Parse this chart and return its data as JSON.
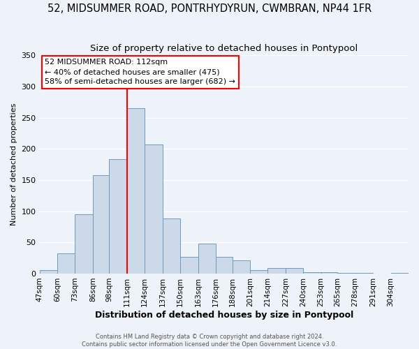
{
  "title": "52, MIDSUMMER ROAD, PONTRHYDYRUN, CWMBRAN, NP44 1FR",
  "subtitle": "Size of property relative to detached houses in Pontypool",
  "xlabel": "Distribution of detached houses by size in Pontypool",
  "ylabel": "Number of detached properties",
  "bin_labels": [
    "47sqm",
    "60sqm",
    "73sqm",
    "86sqm",
    "98sqm",
    "111sqm",
    "124sqm",
    "137sqm",
    "150sqm",
    "163sqm",
    "176sqm",
    "188sqm",
    "201sqm",
    "214sqm",
    "227sqm",
    "240sqm",
    "253sqm",
    "265sqm",
    "278sqm",
    "291sqm",
    "304sqm"
  ],
  "bin_edges": [
    47,
    60,
    73,
    86,
    98,
    111,
    124,
    137,
    150,
    163,
    176,
    188,
    201,
    214,
    227,
    240,
    253,
    265,
    278,
    291,
    304
  ],
  "bar_heights": [
    5,
    32,
    95,
    158,
    184,
    265,
    207,
    88,
    27,
    48,
    27,
    21,
    5,
    9,
    9,
    2,
    2,
    1,
    1,
    0,
    1
  ],
  "bar_color": "#ccd9e8",
  "bar_edge_color": "#7099be",
  "vline_x": 111,
  "vline_color": "red",
  "annotation_title": "52 MIDSUMMER ROAD: 112sqm",
  "annotation_line1": "← 40% of detached houses are smaller (475)",
  "annotation_line2": "58% of semi-detached houses are larger (682) →",
  "annotation_box_color": "white",
  "annotation_box_edge_color": "red",
  "ylim": [
    0,
    350
  ],
  "yticks": [
    0,
    50,
    100,
    150,
    200,
    250,
    300,
    350
  ],
  "footer1": "Contains HM Land Registry data © Crown copyright and database right 2024.",
  "footer2": "Contains public sector information licensed under the Open Government Licence v3.0.",
  "background_color": "#eef2f9",
  "grid_color": "white",
  "title_fontsize": 10.5,
  "subtitle_fontsize": 9.5,
  "xlabel_fontsize": 9,
  "ylabel_fontsize": 8,
  "tick_fontsize": 7.5,
  "annotation_fontsize": 8
}
